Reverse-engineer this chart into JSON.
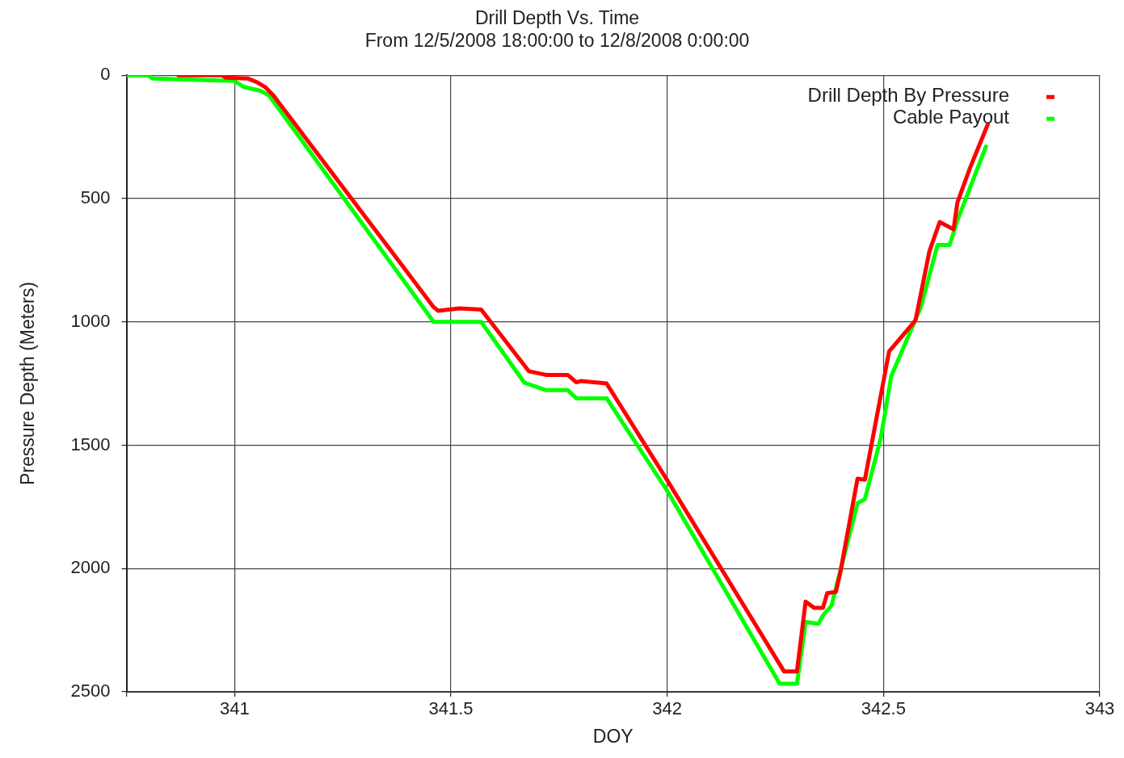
{
  "chart_data": {
    "type": "line",
    "title": "Drill Depth Vs. Time",
    "subtitle": "From 12/5/2008 18:00:00 to 12/8/2008 0:00:00",
    "xlabel": "DOY",
    "ylabel": "Pressure Depth (Meters)",
    "xlim": [
      340.75,
      343
    ],
    "xticks": [
      {
        "value": 340.75,
        "label": null
      },
      341,
      341.5,
      342,
      342.5,
      343
    ],
    "ylim": [
      2500,
      0
    ],
    "yticks": [
      0,
      500,
      1000,
      1500,
      2000,
      2500
    ],
    "grid": true,
    "legend": "top right",
    "marker": "none",
    "line_style": "solid",
    "series": [
      {
        "name": "Drill Depth By Pressure",
        "color": "#ff0000",
        "x": [
          340.87,
          340.97,
          340.98,
          341.03,
          341.05,
          341.07,
          341.09,
          341.46,
          341.47,
          341.52,
          341.57,
          341.68,
          341.72,
          341.77,
          341.79,
          341.8,
          341.86,
          342.0,
          342.27,
          342.3,
          342.32,
          342.34,
          342.36,
          342.37,
          342.39,
          342.4,
          342.44,
          342.457,
          342.485,
          342.513,
          342.574,
          342.606,
          342.63,
          342.662,
          342.671,
          342.7,
          342.741
        ],
        "values": [
          0,
          0,
          10,
          13,
          27,
          47,
          83,
          940,
          955,
          945,
          950,
          1200,
          1215,
          1215,
          1245,
          1240,
          1250,
          1642,
          2417,
          2417,
          2134,
          2160,
          2160,
          2100,
          2095,
          2018,
          1636,
          1640,
          1380,
          1120,
          994,
          715,
          595,
          625,
          515,
          376,
          200
        ]
      },
      {
        "name": "Cable Payout",
        "color": "#00ff00",
        "x": [
          340.75,
          340.8,
          340.81,
          341.0,
          341.02,
          341.06,
          341.08,
          341.46,
          341.57,
          341.67,
          341.72,
          341.77,
          341.79,
          341.86,
          342.0,
          342.26,
          342.3,
          342.32,
          342.35,
          342.36,
          342.38,
          342.44,
          342.457,
          342.494,
          342.518,
          342.587,
          342.625,
          342.653,
          342.671,
          342.737
        ],
        "values": [
          0,
          0,
          13,
          23,
          47,
          63,
          83,
          1000,
          1000,
          1247,
          1277,
          1277,
          1310,
          1310,
          1685,
          2467,
          2467,
          2217,
          2224,
          2190,
          2150,
          1735,
          1719,
          1469,
          1220,
          937,
          688,
          688,
          588,
          289
        ]
      }
    ]
  }
}
